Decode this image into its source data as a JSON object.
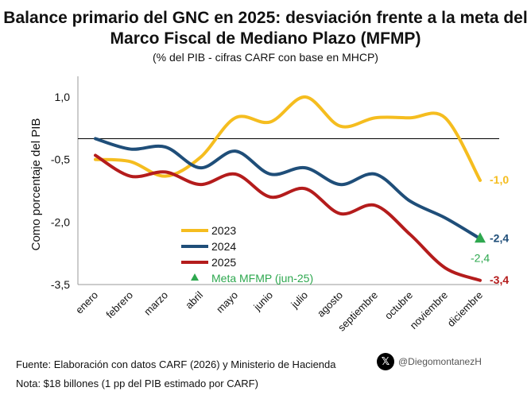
{
  "header": {
    "title_line1": "Balance primario del GNC en 2025: desviación frente a la meta del",
    "title_line2": "Marco Fiscal de Mediano Plazo (MFMP)",
    "subtitle": "(% del PIB - cifras CARF con base en MHCP)"
  },
  "footer": {
    "source": "Fuente: Elaboración con datos CARF (2026) y Ministerio de Hacienda",
    "note": "Nota: $18 billones (1 pp del PIB estimado por CARF)",
    "handle": "@DiegomontanezH",
    "logo_icon": "x-logo-icon"
  },
  "chart_data": {
    "type": "line",
    "ylabel": "Como porcentaje del PIB",
    "ylim": [
      -3.5,
      1.0
    ],
    "yticks": [
      1.0,
      -0.5,
      -2.0,
      -3.5
    ],
    "ytick_labels": [
      "1,0",
      "-0,5",
      "-2,0",
      "-3,5"
    ],
    "reference_line": 0,
    "categories": [
      "enero",
      "febrero",
      "marzo",
      "abril",
      "mayo",
      "junio",
      "julio",
      "agosto",
      "septiembre",
      "octubre",
      "noviembre",
      "diciembre"
    ],
    "series": [
      {
        "name": "2023",
        "color": "#f5bd1f",
        "values": [
          -0.5,
          -0.55,
          -0.9,
          -0.45,
          0.5,
          0.4,
          1.0,
          0.3,
          0.5,
          0.5,
          0.5,
          -1.0
        ],
        "end_label": "-1,0"
      },
      {
        "name": "2024",
        "color": "#1f4e79",
        "values": [
          0,
          -0.25,
          -0.2,
          -0.7,
          -0.3,
          -0.85,
          -0.7,
          -1.1,
          -0.85,
          -1.5,
          -1.9,
          -2.4
        ],
        "end_label": "-2,4"
      },
      {
        "name": "2025",
        "color": "#b41c1c",
        "values": [
          -0.4,
          -0.9,
          -0.8,
          -1.1,
          -0.85,
          -1.4,
          -1.2,
          -1.8,
          -1.6,
          -2.3,
          -3.1,
          -3.4
        ],
        "end_label": "-3,4"
      }
    ],
    "marker": {
      "name": "Meta MFMP (jun-25)",
      "category": "diciembre",
      "value": -2.4,
      "label": "-2,4",
      "color": "#2ea84f"
    },
    "legend": "bottom-left inside plot"
  }
}
